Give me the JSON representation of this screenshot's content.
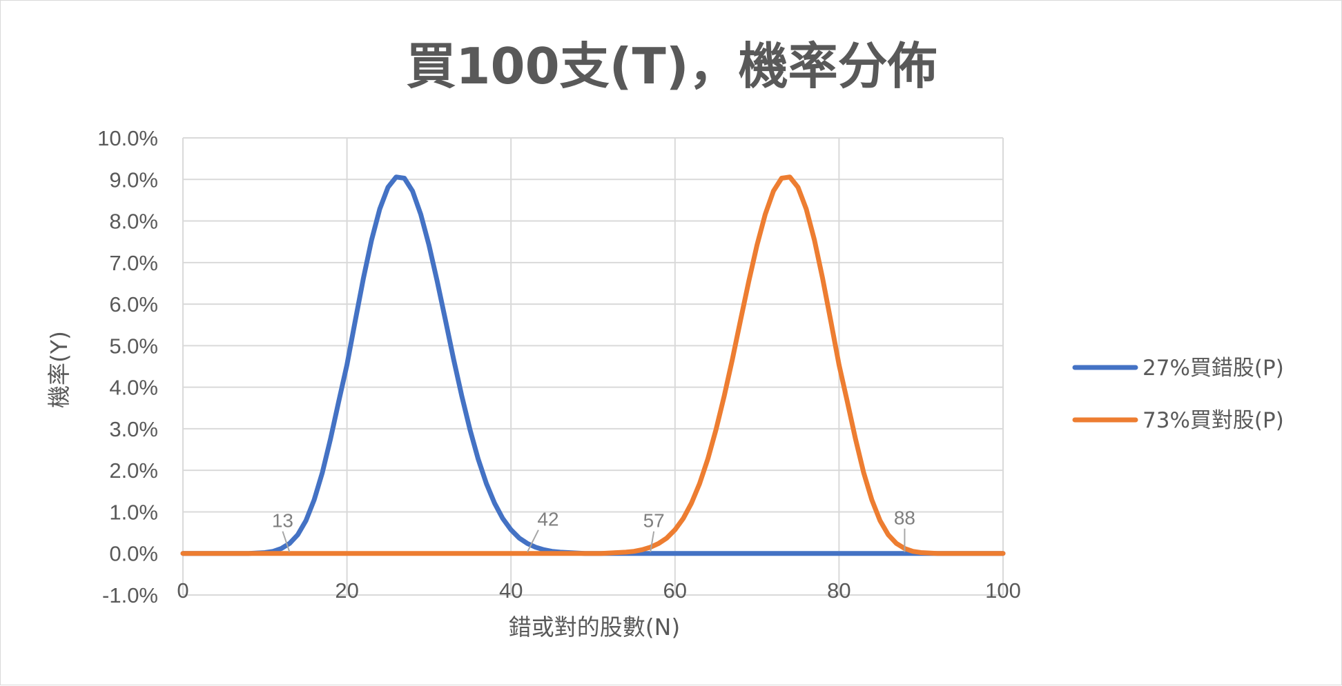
{
  "chart_data": {
    "type": "line",
    "title": "買100支(T)，機率分佈",
    "xlabel": "錯或對的股數(N)",
    "ylabel": "機率(Y)",
    "xlim": [
      0,
      100
    ],
    "ylim": [
      -0.01,
      0.1
    ],
    "x_ticks": [
      0,
      20,
      40,
      60,
      80,
      100
    ],
    "x_tick_labels": [
      "0",
      "20",
      "40",
      "60",
      "80",
      "100"
    ],
    "y_ticks": [
      -0.01,
      0,
      0.01,
      0.02,
      0.03,
      0.04,
      0.05,
      0.06,
      0.07,
      0.08,
      0.09,
      0.1
    ],
    "y_tick_labels": [
      "-1.0%",
      "0.0%",
      "1.0%",
      "2.0%",
      "3.0%",
      "4.0%",
      "5.0%",
      "6.0%",
      "7.0%",
      "8.0%",
      "9.0%",
      "10.0%"
    ],
    "grid": true,
    "legend_position": "right",
    "series": [
      {
        "name": "27%買錯股(P)",
        "color": "#4472C4",
        "x": [
          0,
          1,
          2,
          3,
          4,
          5,
          6,
          7,
          8,
          9,
          10,
          11,
          12,
          13,
          14,
          15,
          16,
          17,
          18,
          19,
          20,
          21,
          22,
          23,
          24,
          25,
          26,
          27,
          28,
          29,
          30,
          31,
          32,
          33,
          34,
          35,
          36,
          37,
          38,
          39,
          40,
          41,
          42,
          43,
          44,
          45,
          46,
          47,
          48,
          49,
          50,
          51,
          52,
          53,
          54,
          55,
          56,
          57,
          58,
          59,
          60,
          61,
          62,
          63,
          64,
          65,
          66,
          67,
          68,
          69,
          70,
          71,
          72,
          73,
          74,
          75,
          76,
          77,
          78,
          79,
          80,
          81,
          82,
          83,
          84,
          85,
          86,
          87,
          88,
          89,
          90,
          91,
          92,
          93,
          94,
          95,
          96,
          97,
          98,
          99,
          100
        ],
        "values": [
          0,
          0,
          0,
          0,
          0,
          0,
          0,
          0,
          0,
          0.0001,
          0.0002,
          0.0005,
          0.0012,
          0.0024,
          0.0045,
          0.0079,
          0.0129,
          0.0195,
          0.0276,
          0.0366,
          0.0454,
          0.0559,
          0.0662,
          0.0754,
          0.0829,
          0.0881,
          0.0906,
          0.0903,
          0.0872,
          0.0816,
          0.0742,
          0.0655,
          0.0562,
          0.0468,
          0.0379,
          0.0298,
          0.0227,
          0.0168,
          0.0121,
          0.0084,
          0.0057,
          0.0037,
          0.0024,
          0.0015,
          0.0009,
          0.0005,
          0.0003,
          0.0002,
          0.0001,
          0,
          0,
          0,
          0,
          0,
          0,
          0,
          0,
          0,
          0,
          0,
          0,
          0,
          0,
          0,
          0,
          0,
          0,
          0,
          0,
          0,
          0,
          0,
          0,
          0,
          0,
          0,
          0,
          0,
          0,
          0,
          0,
          0,
          0,
          0,
          0,
          0,
          0,
          0,
          0,
          0,
          0,
          0,
          0,
          0,
          0,
          0,
          0,
          0,
          0,
          0,
          0
        ]
      },
      {
        "name": "73%買對股(P)",
        "color": "#ED7D31",
        "x": [
          0,
          1,
          2,
          3,
          4,
          5,
          6,
          7,
          8,
          9,
          10,
          11,
          12,
          13,
          14,
          15,
          16,
          17,
          18,
          19,
          20,
          21,
          22,
          23,
          24,
          25,
          26,
          27,
          28,
          29,
          30,
          31,
          32,
          33,
          34,
          35,
          36,
          37,
          38,
          39,
          40,
          41,
          42,
          43,
          44,
          45,
          46,
          47,
          48,
          49,
          50,
          51,
          52,
          53,
          54,
          55,
          56,
          57,
          58,
          59,
          60,
          61,
          62,
          63,
          64,
          65,
          66,
          67,
          68,
          69,
          70,
          71,
          72,
          73,
          74,
          75,
          76,
          77,
          78,
          79,
          80,
          81,
          82,
          83,
          84,
          85,
          86,
          87,
          88,
          89,
          90,
          91,
          92,
          93,
          94,
          95,
          96,
          97,
          98,
          99,
          100
        ],
        "values": [
          0,
          0,
          0,
          0,
          0,
          0,
          0,
          0,
          0,
          0,
          0,
          0,
          0,
          0,
          0,
          0,
          0,
          0,
          0,
          0,
          0,
          0,
          0,
          0,
          0,
          0,
          0,
          0,
          0,
          0,
          0,
          0,
          0,
          0,
          0,
          0,
          0,
          0,
          0,
          0,
          0,
          0,
          0,
          0,
          0,
          0,
          0,
          0,
          0,
          0,
          0,
          0,
          0.0001,
          0.0002,
          0.0003,
          0.0005,
          0.0009,
          0.0015,
          0.0024,
          0.0037,
          0.0057,
          0.0084,
          0.0121,
          0.0168,
          0.0227,
          0.0298,
          0.0379,
          0.0468,
          0.0562,
          0.0655,
          0.0742,
          0.0816,
          0.0872,
          0.0903,
          0.0906,
          0.0881,
          0.0829,
          0.0754,
          0.0662,
          0.0559,
          0.0454,
          0.0366,
          0.0276,
          0.0195,
          0.0129,
          0.0079,
          0.0045,
          0.0024,
          0.0012,
          0.0005,
          0.0002,
          0.0001,
          0,
          0,
          0,
          0,
          0,
          0,
          0,
          0,
          0
        ]
      }
    ],
    "annotations": [
      {
        "text": "13",
        "x": 13,
        "y": 0
      },
      {
        "text": "42",
        "x": 42,
        "y": 0
      },
      {
        "text": "57",
        "x": 57,
        "y": 0
      },
      {
        "text": "88",
        "x": 88,
        "y": 0
      }
    ]
  }
}
